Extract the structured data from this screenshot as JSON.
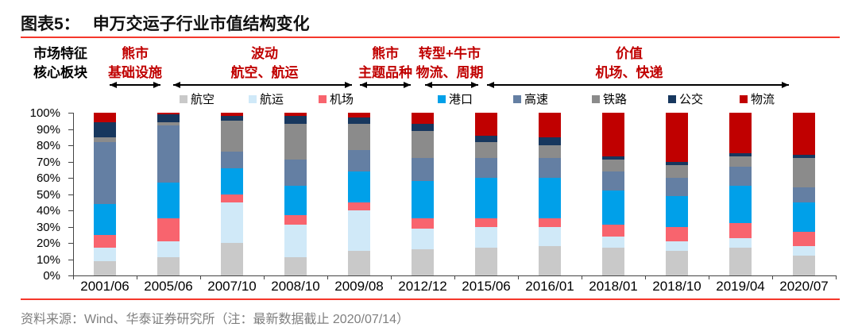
{
  "title": {
    "label": "图表5：",
    "text": "申万交运子行业市值结构变化"
  },
  "accent_color": "#f5372b",
  "annotation": {
    "left_label_line1": "市场特征",
    "left_label_line2": "核心板块",
    "phase_color": "#c00000",
    "phases": [
      {
        "line1": "熊市",
        "line2": "基础设施"
      },
      {
        "line1": "波动",
        "line2": "航空、航运"
      },
      {
        "line1": "熊市",
        "line2": "主题品种"
      },
      {
        "line1": "转型+牛市",
        "line2": "物流、周期"
      },
      {
        "line1": "价值",
        "line2": "机场、快递"
      }
    ]
  },
  "chart_data": {
    "type": "bar",
    "stacking": "percent",
    "title": "申万交运子行业市值结构变化",
    "categories": [
      "2001/06",
      "2005/06",
      "2007/10",
      "2008/10",
      "2009/08",
      "2012/12",
      "2015/06",
      "2016/01",
      "2018/01",
      "2018/10",
      "2019/04",
      "2020/07"
    ],
    "series": [
      {
        "name": "航空",
        "color": "#c9c9c9",
        "values": [
          9,
          11,
          20,
          11,
          15,
          16,
          17,
          18,
          17,
          15,
          17,
          12
        ]
      },
      {
        "name": "航运",
        "color": "#d0e9f8",
        "values": [
          8,
          10,
          25,
          20,
          25,
          13,
          13,
          12,
          7,
          6,
          6,
          6
        ]
      },
      {
        "name": "机场",
        "color": "#f8646e",
        "values": [
          8,
          14,
          5,
          6,
          5,
          6,
          5,
          5,
          7,
          9,
          9,
          9
        ]
      },
      {
        "name": "港口",
        "color": "#00a0e9",
        "values": [
          19,
          22,
          16,
          18,
          19,
          23,
          25,
          25,
          21,
          19,
          23,
          18
        ]
      },
      {
        "name": "高速",
        "color": "#647fa3",
        "values": [
          38,
          35,
          10,
          16,
          13,
          14,
          12,
          12,
          12,
          11,
          12,
          9
        ]
      },
      {
        "name": "铁路",
        "color": "#8b8b8b",
        "values": [
          3,
          2,
          19,
          22,
          16,
          17,
          10,
          8,
          7,
          8,
          6,
          18
        ]
      },
      {
        "name": "公交",
        "color": "#17375e",
        "values": [
          9,
          5,
          3,
          5,
          4,
          4,
          4,
          5,
          2,
          2,
          2,
          2
        ]
      },
      {
        "name": "物流",
        "color": "#c00000",
        "values": [
          6,
          1,
          2,
          2,
          3,
          7,
          14,
          15,
          27,
          30,
          25,
          26
        ]
      }
    ],
    "ylabels": [
      "0%",
      "10%",
      "20%",
      "30%",
      "40%",
      "50%",
      "60%",
      "70%",
      "80%",
      "90%",
      "100%"
    ],
    "ylim": [
      0,
      100
    ],
    "grid": false,
    "legend_position": "top"
  },
  "footer": {
    "text": "资料来源：Wind、华泰证券研究所（注：最新数据截止 2020/07/14）"
  }
}
